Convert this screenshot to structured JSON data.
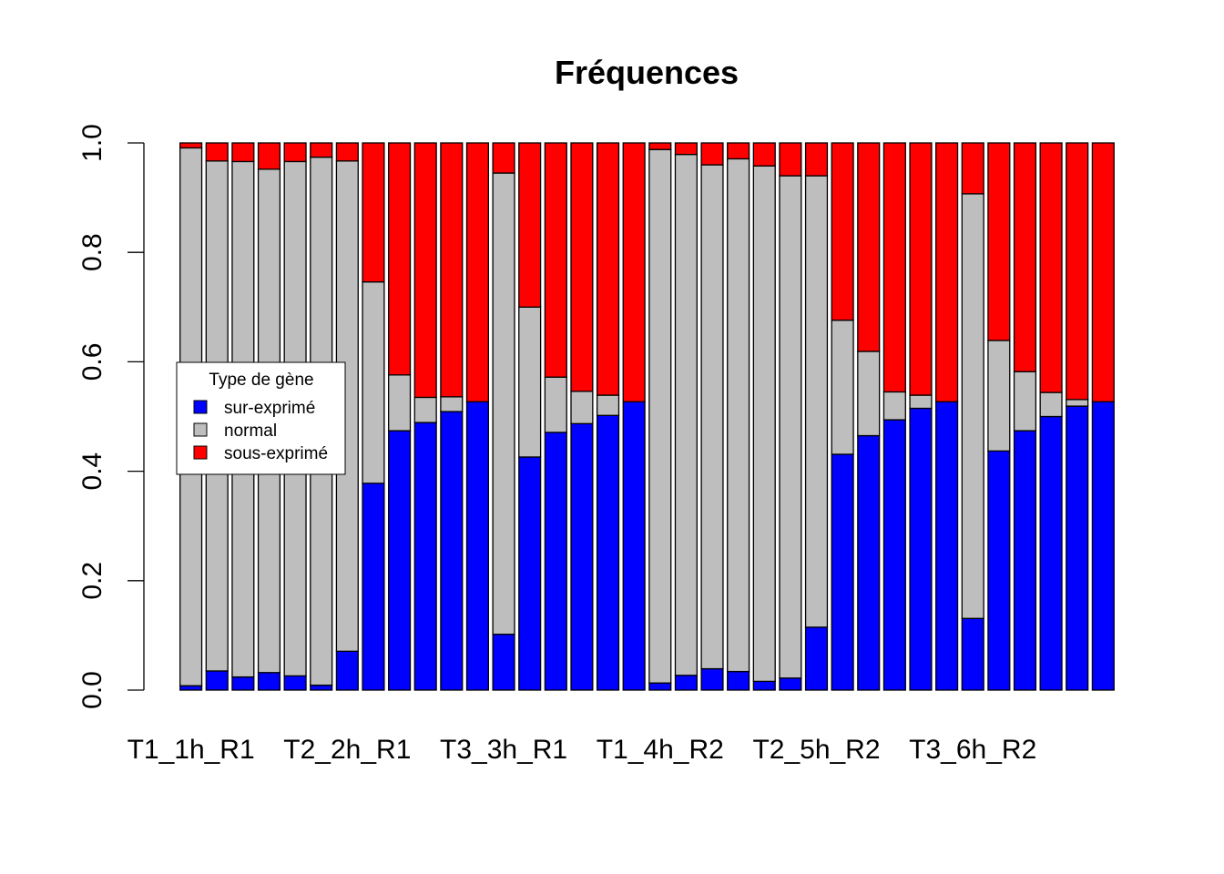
{
  "chart_data": {
    "type": "bar",
    "stacked": true,
    "title": "Fréquences",
    "xlabel": "",
    "ylabel": "",
    "ylim": [
      0,
      1
    ],
    "yticks": [
      "0.0",
      "0.2",
      "0.4",
      "0.6",
      "0.8",
      "1.0"
    ],
    "x_tick_labels": [
      "T1_1h_R1",
      "T2_2h_R1",
      "T3_3h_R1",
      "T1_4h_R2",
      "T2_5h_R2",
      "T3_6h_R2"
    ],
    "legend": {
      "title": "Type de gène",
      "position": "left",
      "entries": [
        "sur-exprimé",
        "normal",
        "sous-exprimé"
      ]
    },
    "colors": {
      "sur-exprimé": "#0000ff",
      "normal": "#bebebe",
      "sous-exprimé": "#ff0000"
    },
    "bar_count": 36,
    "series": [
      {
        "name": "sur-exprimé",
        "values": [
          0.008,
          0.035,
          0.024,
          0.032,
          0.026,
          0.009,
          0.071,
          0.378,
          0.474,
          0.489,
          0.509,
          0.527,
          0.102,
          0.426,
          0.471,
          0.487,
          0.502,
          0.527,
          0.013,
          0.027,
          0.039,
          0.034,
          0.016,
          0.022,
          0.115,
          0.431,
          0.465,
          0.494,
          0.515,
          0.527,
          0.131,
          0.437,
          0.474,
          0.5,
          0.519,
          0.527
        ]
      },
      {
        "name": "normal",
        "values": [
          0.983,
          0.932,
          0.942,
          0.92,
          0.94,
          0.965,
          0.896,
          0.368,
          0.102,
          0.046,
          0.027,
          0.0,
          0.843,
          0.274,
          0.101,
          0.059,
          0.037,
          0.0,
          0.975,
          0.952,
          0.921,
          0.937,
          0.942,
          0.918,
          0.825,
          0.245,
          0.154,
          0.051,
          0.024,
          0.0,
          0.776,
          0.202,
          0.108,
          0.044,
          0.012,
          0.0
        ]
      },
      {
        "name": "sous-exprimé",
        "values": [
          0.009,
          0.033,
          0.034,
          0.048,
          0.034,
          0.026,
          0.033,
          0.254,
          0.424,
          0.465,
          0.464,
          0.473,
          0.055,
          0.3,
          0.428,
          0.454,
          0.461,
          0.473,
          0.012,
          0.021,
          0.04,
          0.029,
          0.042,
          0.06,
          0.06,
          0.324,
          0.381,
          0.455,
          0.461,
          0.473,
          0.093,
          0.361,
          0.418,
          0.456,
          0.469,
          0.473
        ]
      }
    ]
  }
}
